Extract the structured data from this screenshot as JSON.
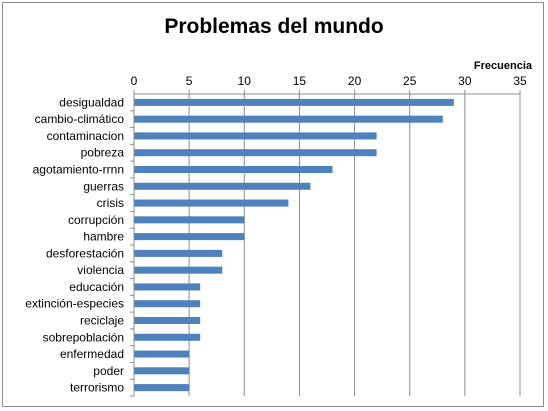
{
  "chart_data": {
    "type": "bar",
    "orientation": "horizontal",
    "title": "Problemas del mundo",
    "xlabel": "Frecuencia",
    "ylabel": "",
    "xlim": [
      0,
      35
    ],
    "x_ticks": [
      0,
      5,
      10,
      15,
      20,
      25,
      30,
      35
    ],
    "x_axis_position": "top",
    "grid": true,
    "legend": "none",
    "bar_color": "#4f81bd",
    "categories": [
      "desigualdad",
      "cambio-climático",
      "contaminacion",
      "pobreza",
      "agotamiento-rrnn",
      "guerras",
      "crisis",
      "corrupción",
      "hambre",
      "desforestación",
      "violencia",
      "educación",
      "extinción-especies",
      "reciclaje",
      "sobrepoblación",
      "enfermedad",
      "poder",
      "terrorismo"
    ],
    "values": [
      29,
      28,
      22,
      22,
      18,
      16,
      14,
      10,
      10,
      8,
      8,
      6,
      6,
      6,
      6,
      5,
      5,
      5
    ]
  }
}
